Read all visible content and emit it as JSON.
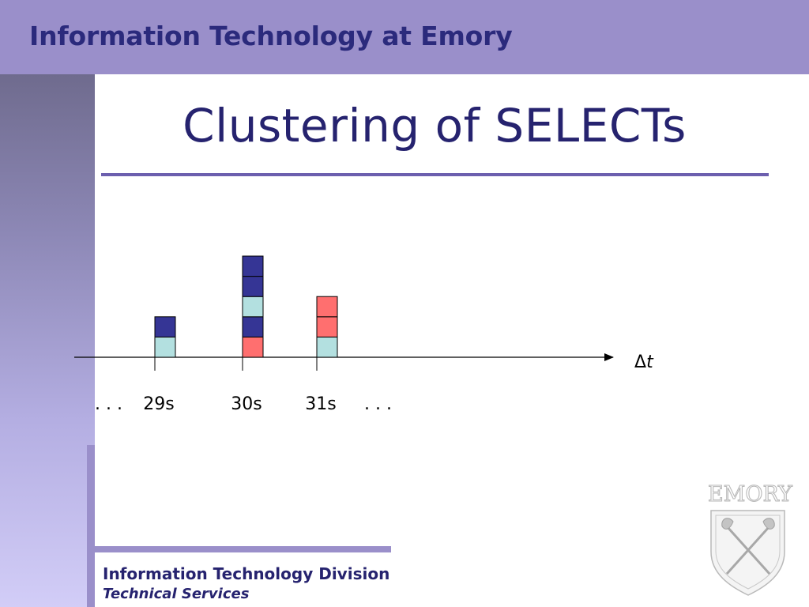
{
  "header": {
    "title": "Information Technology at Emory"
  },
  "slide": {
    "title": "Clustering of SELECTs"
  },
  "footer": {
    "division": "Information Technology Division",
    "unit": "Technical Services"
  },
  "logo": {
    "wordmark": "EMORY"
  },
  "colors": {
    "header_band": "#9a8fca",
    "text_dark": "#26236f",
    "block_dark_blue": "#353595",
    "block_light_teal": "#b3e0e0",
    "block_salmon": "#ff6f6f"
  },
  "chart_data": {
    "type": "stacked-blocks-timeline",
    "axis_label_prefix": "Δ",
    "axis_label_var": "t",
    "leading_ellipsis": ". . .",
    "trailing_ellipsis": ". . .",
    "ticks": [
      {
        "label": "29s",
        "blocks": [
          "light_teal",
          "dark_blue"
        ]
      },
      {
        "label": "30s",
        "blocks": [
          "salmon",
          "dark_blue",
          "light_teal",
          "dark_blue",
          "dark_blue"
        ]
      },
      {
        "label": "31s",
        "blocks": [
          "light_teal",
          "salmon",
          "salmon"
        ]
      }
    ],
    "legend": {
      "dark_blue": "#353595",
      "light_teal": "#b3e0e0",
      "salmon": "#ff6f6f"
    }
  }
}
